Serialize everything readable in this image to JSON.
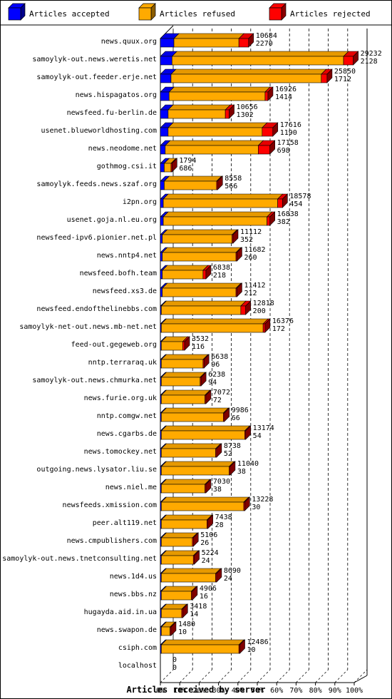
{
  "chart_data": {
    "type": "bar",
    "orientation": "horizontal",
    "stacked": true,
    "style": "3d",
    "legend_position": "top",
    "grid": "vertical dashed",
    "xlabel": "Articles received by server",
    "x_ticks": [
      "0%",
      "10%",
      "20%",
      "30%",
      "40%",
      "50%",
      "60%",
      "70%",
      "80%",
      "90%",
      "100%"
    ],
    "xlim": [
      0,
      100
    ],
    "series": [
      {
        "name": "Articles accepted",
        "color": "#0000ff"
      },
      {
        "name": "Articles refused",
        "color": "#ffaa00"
      },
      {
        "name": "Articles rejected",
        "color": "#ff0000"
      }
    ],
    "rows": [
      {
        "label": "news.quux.org",
        "accepted_pct": 7.0,
        "refused_pct": 33.5,
        "rejected_pct": 5.0,
        "line1": "10684",
        "line2": "2270"
      },
      {
        "label": "samoylyk-out.news.weretis.net",
        "accepted_pct": 6.0,
        "refused_pct": 88.5,
        "rejected_pct": 5.0,
        "line1": "29232",
        "line2": "2128"
      },
      {
        "label": "samoylyk-out.feeder.erje.net",
        "accepted_pct": 5.5,
        "refused_pct": 77.5,
        "rejected_pct": 3.0,
        "line1": "25850",
        "line2": "1712"
      },
      {
        "label": "news.hispagatos.org",
        "accepted_pct": 4.5,
        "refused_pct": 49.5,
        "rejected_pct": 1.5,
        "line1": "16926",
        "line2": "1414"
      },
      {
        "label": "newsfeed.fu-berlin.de",
        "accepted_pct": 4.0,
        "refused_pct": 29.5,
        "rejected_pct": 2.0,
        "line1": "10656",
        "line2": "1302"
      },
      {
        "label": "usenet.blueworldhosting.com",
        "accepted_pct": 4.0,
        "refused_pct": 48.5,
        "rejected_pct": 5.5,
        "line1": "17616",
        "line2": "1190"
      },
      {
        "label": "news.neodome.net",
        "accepted_pct": 2.5,
        "refused_pct": 48.0,
        "rejected_pct": 6.0,
        "line1": "17158",
        "line2": "698"
      },
      {
        "label": "gothmog.csi.it",
        "accepted_pct": 2.0,
        "refused_pct": 3.5,
        "rejected_pct": 0.5,
        "line1": "1794",
        "line2": "686"
      },
      {
        "label": "samoylyk.feeds.news.szaf.org",
        "accepted_pct": 2.0,
        "refused_pct": 27.0,
        "rejected_pct": 0.5,
        "line1": "8558",
        "line2": "566"
      },
      {
        "label": "i2pn.org",
        "accepted_pct": 1.5,
        "refused_pct": 59.0,
        "rejected_pct": 2.5,
        "line1": "18578",
        "line2": "454"
      },
      {
        "label": "usenet.goja.nl.eu.org",
        "accepted_pct": 1.5,
        "refused_pct": 53.5,
        "rejected_pct": 1.5,
        "line1": "16838",
        "line2": "382"
      },
      {
        "label": "newsfeed-ipv6.pionier.net.pl",
        "accepted_pct": 1.0,
        "refused_pct": 36.0,
        "rejected_pct": 0.5,
        "line1": "11112",
        "line2": "352"
      },
      {
        "label": "news.nntp4.net",
        "accepted_pct": 1.0,
        "refused_pct": 38.0,
        "rejected_pct": 0.5,
        "line1": "11682",
        "line2": "260"
      },
      {
        "label": "newsfeed.bofh.team",
        "accepted_pct": 1.0,
        "refused_pct": 21.0,
        "rejected_pct": 1.5,
        "line1": "6838",
        "line2": "218"
      },
      {
        "label": "newsfeed.xs3.de",
        "accepted_pct": 1.0,
        "refused_pct": 38.0,
        "rejected_pct": 0.5,
        "line1": "11412",
        "line2": "212"
      },
      {
        "label": "newsfeed.endofthelinebbs.com",
        "accepted_pct": 0.5,
        "refused_pct": 41.0,
        "rejected_pct": 2.5,
        "line1": "12818",
        "line2": "200"
      },
      {
        "label": "samoylyk-net-out.news.mb-net.net",
        "accepted_pct": 0.5,
        "refused_pct": 52.5,
        "rejected_pct": 1.0,
        "line1": "16376",
        "line2": "172"
      },
      {
        "label": "feed-out.gegeweb.org",
        "accepted_pct": 0.5,
        "refused_pct": 11.0,
        "rejected_pct": 1.0,
        "line1": "3532",
        "line2": "116"
      },
      {
        "label": "nntp.terraraq.uk",
        "accepted_pct": 0.5,
        "refused_pct": 21.5,
        "rejected_pct": 0.5,
        "line1": "6638",
        "line2": "96"
      },
      {
        "label": "samoylyk-out.news.chmurka.net",
        "accepted_pct": 0.5,
        "refused_pct": 20.0,
        "rejected_pct": 0.5,
        "line1": "6238",
        "line2": "94"
      },
      {
        "label": "news.furie.org.uk",
        "accepted_pct": 0.5,
        "refused_pct": 22.5,
        "rejected_pct": 0.5,
        "line1": "7072",
        "line2": "72"
      },
      {
        "label": "nntp.comgw.net",
        "accepted_pct": 0.5,
        "refused_pct": 32.0,
        "rejected_pct": 0.5,
        "line1": "9986",
        "line2": "66"
      },
      {
        "label": "news.cgarbs.de",
        "accepted_pct": 0.5,
        "refused_pct": 43.0,
        "rejected_pct": 0.5,
        "line1": "13174",
        "line2": "54"
      },
      {
        "label": "news.tomockey.net",
        "accepted_pct": 0.5,
        "refused_pct": 28.0,
        "rejected_pct": 0.5,
        "line1": "8738",
        "line2": "52"
      },
      {
        "label": "outgoing.news.lysator.liu.se",
        "accepted_pct": 0.5,
        "refused_pct": 35.0,
        "rejected_pct": 0.5,
        "line1": "11040",
        "line2": "38"
      },
      {
        "label": "news.niel.me",
        "accepted_pct": 0.5,
        "refused_pct": 22.5,
        "rejected_pct": 0.5,
        "line1": "7030",
        "line2": "38"
      },
      {
        "label": "newsfeeds.xmission.com",
        "accepted_pct": 0.5,
        "refused_pct": 42.5,
        "rejected_pct": 0.5,
        "line1": "13228",
        "line2": "30"
      },
      {
        "label": "peer.alt119.net",
        "accepted_pct": 0.5,
        "refused_pct": 23.5,
        "rejected_pct": 0.5,
        "line1": "7438",
        "line2": "28"
      },
      {
        "label": "news.cmpublishers.com",
        "accepted_pct": 0.5,
        "refused_pct": 16.0,
        "rejected_pct": 0.5,
        "line1": "5106",
        "line2": "26"
      },
      {
        "label": "samoylyk-out.news.tnetconsulting.net",
        "accepted_pct": 0.5,
        "refused_pct": 16.5,
        "rejected_pct": 0.5,
        "line1": "5224",
        "line2": "24"
      },
      {
        "label": "news.1d4.us",
        "accepted_pct": 0.5,
        "refused_pct": 28.0,
        "rejected_pct": 0.5,
        "line1": "8690",
        "line2": "24"
      },
      {
        "label": "news.bbs.nz",
        "accepted_pct": 0.5,
        "refused_pct": 15.5,
        "rejected_pct": 0.5,
        "line1": "4906",
        "line2": "16"
      },
      {
        "label": "hugayda.aid.in.ua",
        "accepted_pct": 0.5,
        "refused_pct": 10.5,
        "rejected_pct": 0.5,
        "line1": "3418",
        "line2": "14"
      },
      {
        "label": "news.swapon.de",
        "accepted_pct": 0.5,
        "refused_pct": 4.5,
        "rejected_pct": 0.5,
        "line1": "1480",
        "line2": "10"
      },
      {
        "label": "csiph.com",
        "accepted_pct": 0.5,
        "refused_pct": 40.0,
        "rejected_pct": 0.5,
        "line1": "12486",
        "line2": "10"
      },
      {
        "label": "localhost",
        "accepted_pct": 0,
        "refused_pct": 0,
        "rejected_pct": 0,
        "line1": "0",
        "line2": "0"
      }
    ]
  }
}
